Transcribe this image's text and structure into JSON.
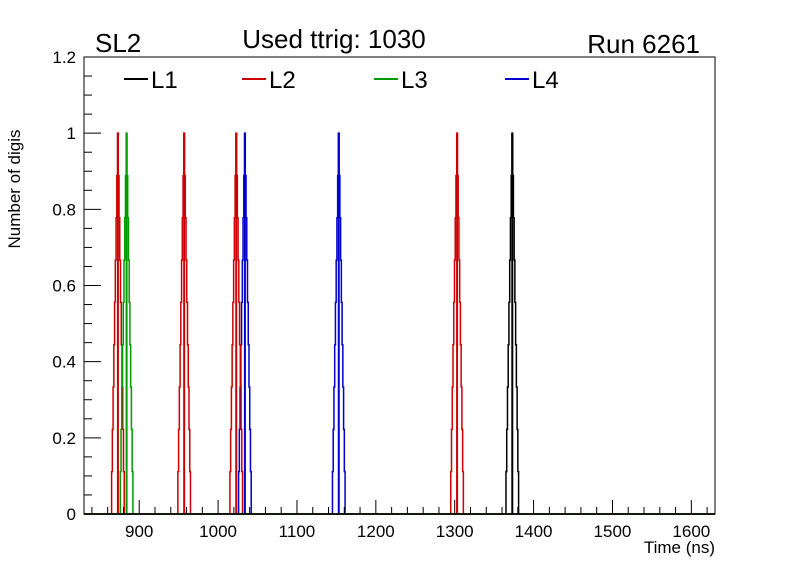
{
  "chart_data": {
    "type": "histogram",
    "title_left": "SL2",
    "title_center": "Used ttrig: 1030",
    "title_right": "Run 6261",
    "xlabel": "Time (ns)",
    "ylabel": "Number of digis",
    "xlim": [
      830,
      1630
    ],
    "ylim": [
      0,
      1.2
    ],
    "x_ticks": [
      900,
      1000,
      1100,
      1200,
      1300,
      1400,
      1500,
      1600
    ],
    "y_ticks": [
      0,
      0.2,
      0.4,
      0.6,
      0.8,
      1,
      1.2
    ],
    "y_tick_labels": [
      "0",
      "0.2",
      "0.4",
      "0.6",
      "0.8",
      "1",
      "1.2"
    ],
    "grid": false,
    "legend_position": "top",
    "series": [
      {
        "name": "L1",
        "color": "#000000",
        "peaks": [
          1373
        ]
      },
      {
        "name": "L2",
        "color": "#cc0000",
        "peaks": [
          873,
          957,
          1023,
          1303
        ]
      },
      {
        "name": "L3",
        "color": "#009900",
        "peaks": [
          884
        ]
      },
      {
        "name": "L4",
        "color": "#0000cc",
        "peaks": [
          1034,
          1153
        ]
      }
    ],
    "peak_height": 1,
    "peak_half_width_ns": 8
  }
}
